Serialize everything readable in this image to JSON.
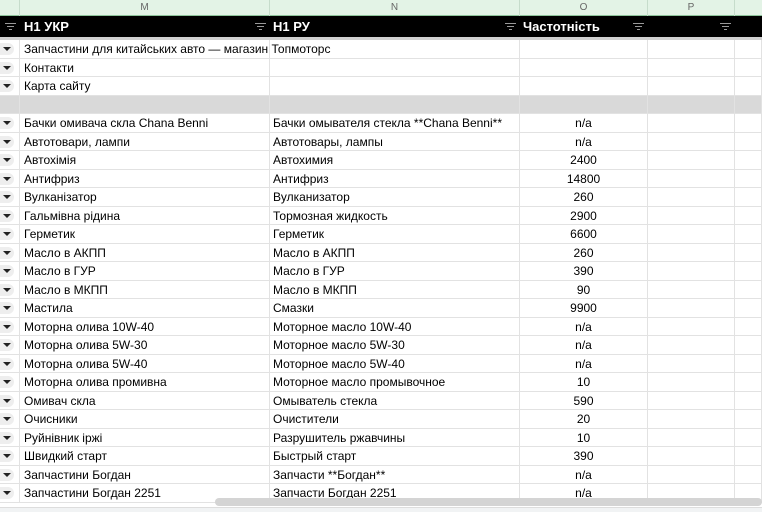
{
  "columns": [
    "M",
    "N",
    "O",
    "P"
  ],
  "header": {
    "col_m": "H1 УКР",
    "col_n": "H1 РУ",
    "col_o": "Частотність",
    "col_p": ""
  },
  "rows": [
    {
      "ukr": "Запчастини для китайських авто — магазин Топмоторс",
      "ru": "",
      "freq": ""
    },
    {
      "ukr": "Контакти",
      "ru": "",
      "freq": ""
    },
    {
      "ukr": "Карта сайту",
      "ru": "",
      "freq": ""
    },
    {
      "ukr": "",
      "ru": "",
      "freq": "",
      "gray": true
    },
    {
      "ukr": "Бачки омивача скла Chana Benni",
      "ru": "Бачки омывателя стекла **Chana Benni**",
      "freq": "n/a"
    },
    {
      "ukr": "Автотовари, лампи",
      "ru": "Автотовары, лампы",
      "freq": "n/a"
    },
    {
      "ukr": "Автохімія",
      "ru": "Автохимия",
      "freq": "2400"
    },
    {
      "ukr": "Антифриз",
      "ru": "Антифриз",
      "freq": "14800"
    },
    {
      "ukr": "Вулканізатор",
      "ru": "Вулканизатор",
      "freq": "260"
    },
    {
      "ukr": "Гальмівна рідина",
      "ru": "Тормозная жидкость",
      "freq": "2900"
    },
    {
      "ukr": "Герметик",
      "ru": "Герметик",
      "freq": "6600"
    },
    {
      "ukr": "Масло в АКПП",
      "ru": "Масло в АКПП",
      "freq": "260"
    },
    {
      "ukr": "Масло в ГУР",
      "ru": "Масло в ГУР",
      "freq": "390"
    },
    {
      "ukr": "Масло в МКПП",
      "ru": "Масло в МКПП",
      "freq": "90"
    },
    {
      "ukr": "Мастила",
      "ru": "Смазки",
      "freq": "9900"
    },
    {
      "ukr": "Моторна олива 10W-40",
      "ru": "Моторное масло 10W-40",
      "freq": "n/a"
    },
    {
      "ukr": "Моторна олива 5W-30",
      "ru": "Моторное масло 5W-30",
      "freq": "n/a"
    },
    {
      "ukr": "Моторна олива 5W-40",
      "ru": "Моторное масло 5W-40",
      "freq": "n/a"
    },
    {
      "ukr": "Моторна олива промивна",
      "ru": "Моторное масло промывочное",
      "freq": "10"
    },
    {
      "ukr": "Омивач скла",
      "ru": "Омыватель стекла",
      "freq": "590"
    },
    {
      "ukr": "Очисники",
      "ru": "Очистители",
      "freq": "20"
    },
    {
      "ukr": "Руйнівник іржі",
      "ru": "Разрушитель ржавчины",
      "freq": "10"
    },
    {
      "ukr": "Швидкий старт",
      "ru": "Быстрый старт",
      "freq": "390"
    },
    {
      "ukr": "Запчастини Богдан",
      "ru": "Запчасти **Богдан**",
      "freq": "n/a"
    },
    {
      "ukr": "Запчастини Богдан 2251",
      "ru": "Запчасти Богдан 2251",
      "freq": "n/a"
    }
  ]
}
